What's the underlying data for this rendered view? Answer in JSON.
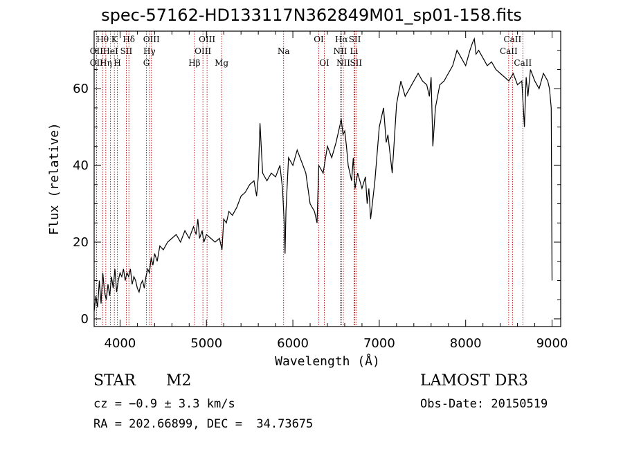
{
  "chart_data": {
    "type": "line",
    "title": "spec-57162-HD133117N362849M01_sp01-158.fits",
    "xlabel": "Wavelength (Å)",
    "ylabel": "Flux (relative)",
    "xlim": [
      3700,
      9100
    ],
    "ylim": [
      -2,
      75
    ],
    "xticks": [
      4000,
      5000,
      6000,
      7000,
      8000,
      9000
    ],
    "yticks": [
      0,
      20,
      40,
      60
    ],
    "grid": false,
    "series": [
      {
        "x": [
          3700,
          3720,
          3740,
          3760,
          3780,
          3800,
          3820,
          3840,
          3860,
          3880,
          3900,
          3920,
          3940,
          3960,
          3980,
          4000,
          4020,
          4040,
          4060,
          4080,
          4100,
          4120,
          4140,
          4160,
          4180,
          4200,
          4220,
          4240,
          4260,
          4280,
          4300,
          4320,
          4340,
          4360,
          4380,
          4400,
          4430,
          4460,
          4500,
          4550,
          4600,
          4650,
          4700,
          4750,
          4800,
          4850,
          4880,
          4900,
          4920,
          4950,
          4970,
          5000,
          5050,
          5100,
          5150,
          5180,
          5200,
          5230,
          5260,
          5300,
          5350,
          5400,
          5450,
          5500,
          5550,
          5580,
          5600,
          5620,
          5650,
          5700,
          5750,
          5800,
          5850,
          5880,
          5900,
          5910,
          5920,
          5950,
          6000,
          6050,
          6100,
          6150,
          6200,
          6250,
          6280,
          6300,
          6350,
          6400,
          6450,
          6500,
          6520,
          6540,
          6560,
          6580,
          6600,
          6620,
          6640,
          6660,
          6680,
          6700,
          6720,
          6750,
          6800,
          6840,
          6860,
          6880,
          6900,
          6950,
          7000,
          7050,
          7080,
          7100,
          7150,
          7200,
          7250,
          7300,
          7350,
          7400,
          7450,
          7500,
          7550,
          7580,
          7600,
          7620,
          7650,
          7700,
          7750,
          7800,
          7850,
          7900,
          7950,
          8000,
          8050,
          8080,
          8100,
          8120,
          8150,
          8200,
          8250,
          8300,
          8350,
          8400,
          8450,
          8500,
          8550,
          8600,
          8650,
          8680,
          8700,
          8720,
          8750,
          8800,
          8850,
          8900,
          8950,
          8970,
          8990,
          9000
        ],
        "y": [
          2,
          6,
          3,
          10,
          4,
          12,
          7,
          5,
          9,
          6,
          11,
          8,
          13,
          7,
          10,
          12,
          11,
          13,
          10,
          12,
          11,
          13,
          9,
          11,
          10,
          8,
          7,
          9,
          10,
          8,
          11,
          13,
          12,
          16,
          14,
          17,
          15,
          19,
          18,
          20,
          21,
          22,
          20,
          23,
          21,
          24,
          22,
          26,
          21,
          23,
          20,
          22,
          21,
          20,
          21,
          18,
          26,
          25,
          28,
          27,
          29,
          32,
          33,
          35,
          36,
          32,
          37,
          51,
          38,
          36,
          38,
          37,
          40,
          34,
          25,
          17,
          28,
          42,
          40,
          44,
          41,
          38,
          30,
          28,
          25,
          40,
          38,
          45,
          42,
          46,
          48,
          50,
          52,
          48,
          49,
          45,
          40,
          38,
          36,
          42,
          34,
          38,
          34,
          37,
          30,
          34,
          26,
          36,
          50,
          55,
          46,
          48,
          38,
          56,
          62,
          58,
          60,
          62,
          64,
          62,
          61,
          58,
          63,
          45,
          55,
          61,
          62,
          64,
          66,
          70,
          68,
          66,
          70,
          72,
          73,
          69,
          70,
          68,
          66,
          67,
          65,
          64,
          63,
          62,
          64,
          61,
          62,
          50,
          63,
          58,
          65,
          62,
          60,
          64,
          62,
          60,
          55,
          10
        ]
      }
    ],
    "line_ids": [
      {
        "name": "Hθ",
        "x": 3798,
        "row": 1
      },
      {
        "name": "OII",
        "x": 3727,
        "row": 2
      },
      {
        "name": "OII",
        "x": 3727,
        "row": 3
      },
      {
        "name": "Hη",
        "x": 3835,
        "row": 3
      },
      {
        "name": "K",
        "x": 3934,
        "row": 1
      },
      {
        "name": "HeI",
        "x": 3889,
        "row": 2
      },
      {
        "name": "H",
        "x": 3969,
        "row": 3
      },
      {
        "name": "Hδ",
        "x": 4102,
        "row": 1
      },
      {
        "name": "SII",
        "x": 4072,
        "row": 2
      },
      {
        "name": "OIII",
        "x": 4363,
        "row": 1
      },
      {
        "name": "Hγ",
        "x": 4340,
        "row": 2
      },
      {
        "name": "G",
        "x": 4305,
        "row": 3
      },
      {
        "name": "Hβ",
        "x": 4861,
        "row": 3
      },
      {
        "name": "OIII",
        "x": 5007,
        "row": 1
      },
      {
        "name": "OIII",
        "x": 4959,
        "row": 2
      },
      {
        "name": "Mg",
        "x": 5175,
        "row": 3
      },
      {
        "name": "Na",
        "x": 5893,
        "row": 2
      },
      {
        "name": "OI",
        "x": 6300,
        "row": 1
      },
      {
        "name": "OI",
        "x": 6364,
        "row": 3
      },
      {
        "name": "Hα",
        "x": 6563,
        "row": 1
      },
      {
        "name": "NII",
        "x": 6548,
        "row": 2
      },
      {
        "name": "NII",
        "x": 6584,
        "row": 3
      },
      {
        "name": "SII",
        "x": 6717,
        "row": 1
      },
      {
        "name": "Li",
        "x": 6708,
        "row": 2
      },
      {
        "name": "SII",
        "x": 6731,
        "row": 3
      },
      {
        "name": "CaII",
        "x": 8542,
        "row": 1
      },
      {
        "name": "CaII",
        "x": 8498,
        "row": 2
      },
      {
        "name": "CaII",
        "x": 8662,
        "row": 3
      }
    ]
  },
  "info": {
    "object_class": "STAR",
    "subclass": "M2",
    "survey": "LAMOST DR3",
    "redshift": "cz = −0.9 ± 3.3 km/s",
    "obs_date": "Obs-Date: 20150519",
    "coords": "RA = 202.66899, DEC =  34.73675"
  },
  "colors": {
    "line_marker": "#b40000",
    "spectrum": "#000000"
  }
}
